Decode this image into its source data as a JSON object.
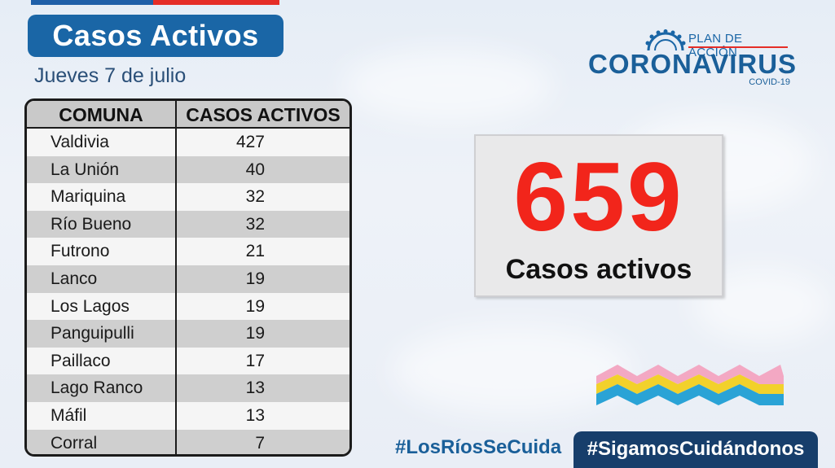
{
  "header": {
    "title": "Casos Activos",
    "date": "Jueves 7 de julio"
  },
  "table": {
    "columns": [
      "COMUNA",
      "CASOS ACTIVOS"
    ],
    "rows": [
      {
        "comuna": "Valdivia",
        "casos": "427"
      },
      {
        "comuna": "La Unión",
        "casos": "40"
      },
      {
        "comuna": "Mariquina",
        "casos": "32"
      },
      {
        "comuna": "Río Bueno",
        "casos": "32"
      },
      {
        "comuna": "Futrono",
        "casos": "21"
      },
      {
        "comuna": "Lanco",
        "casos": "19"
      },
      {
        "comuna": "Los Lagos",
        "casos": "19"
      },
      {
        "comuna": "Panguipulli",
        "casos": "19"
      },
      {
        "comuna": "Paillaco",
        "casos": "17"
      },
      {
        "comuna": "Lago Ranco",
        "casos": "13"
      },
      {
        "comuna": "Máfil",
        "casos": "13"
      },
      {
        "comuna": "Corral",
        "casos": "7"
      }
    ]
  },
  "logo": {
    "plan": "PLAN DE ACCIÓN",
    "name": "CORONAVIRUS",
    "sub": "COVID-19",
    "icon": "virus-crown-icon"
  },
  "total": {
    "value": "659",
    "label": "Casos activos"
  },
  "footer": {
    "hashtag_1": "#LosRíosSeCuida",
    "hashtag_2": "#SigamosCuidándonos"
  },
  "colors": {
    "brand_blue": "#1a66a6",
    "accent_red": "#f2251b",
    "dark_navy": "#173e6b"
  }
}
